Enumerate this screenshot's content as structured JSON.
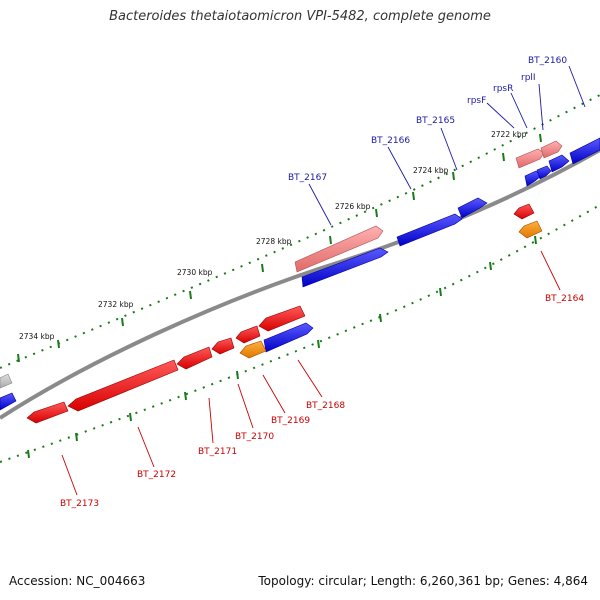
{
  "title": "Bacteroides thetaiotaomicron VPI-5482, complete genome",
  "footer": {
    "accession": "Accession: NC_004663",
    "summary": "Topology: circular; Length: 6,260,361 bp; Genes: 4,864"
  },
  "colors": {
    "forward_strand": "#0000dd",
    "forward_strand_light": "#f08080",
    "reverse_strand": "#ee0000",
    "reverse_strand_alt": "#ff8c00",
    "reverse_strand_light": "#bbbbbb",
    "backbone": "#777777",
    "ticks": "#1a7a1a",
    "forward_label": "#1a1aa6",
    "reverse_label": "#cc0000"
  },
  "ruler": {
    "unit": "kbp",
    "labels": [
      "2722 kbp",
      "2724 kbp",
      "2726 kbp",
      "2728 kbp",
      "2730 kbp",
      "2732 kbp",
      "2734 kbp"
    ]
  },
  "genes": {
    "forward": [
      "BT_2160",
      "rplI",
      "rpsR",
      "rpsF",
      "BT_2165",
      "BT_2166",
      "BT_2167"
    ],
    "reverse": [
      "BT_2164",
      "BT_2168",
      "BT_2169",
      "BT_2170",
      "BT_2171",
      "BT_2172",
      "BT_2173"
    ]
  }
}
